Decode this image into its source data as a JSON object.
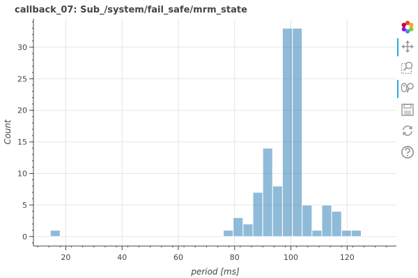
{
  "chart_data": {
    "type": "bar",
    "title": "callback_07: Sub_/system/fail_safe/mrm_state",
    "xlabel": "period [ms]",
    "ylabel": "Count",
    "xlim": [
      8.5,
      137.5
    ],
    "ylim": [
      -1.5,
      34.5
    ],
    "x_ticks": [
      20,
      40,
      60,
      80,
      100,
      120
    ],
    "y_ticks": [
      0,
      5,
      10,
      15,
      20,
      25,
      30
    ],
    "bin_width": 3.5,
    "bins": [
      {
        "left": 14.5,
        "count": 1
      },
      {
        "left": 76,
        "count": 1
      },
      {
        "left": 79.5,
        "count": 3
      },
      {
        "left": 83,
        "count": 2
      },
      {
        "left": 86.5,
        "count": 7
      },
      {
        "left": 90,
        "count": 14
      },
      {
        "left": 93.5,
        "count": 8
      },
      {
        "left": 97,
        "count": 33
      },
      {
        "left": 100.5,
        "count": 33
      },
      {
        "left": 104,
        "count": 5
      },
      {
        "left": 107.5,
        "count": 1
      },
      {
        "left": 111,
        "count": 5
      },
      {
        "left": 114.5,
        "count": 4
      },
      {
        "left": 118,
        "count": 1
      },
      {
        "left": 121.5,
        "count": 1
      }
    ],
    "bar_color": "#1f77b4",
    "bar_opacity": 0.5,
    "grid": true,
    "legend": "none"
  },
  "toolbar": {
    "tools": [
      {
        "name": "bokeh-logo-icon",
        "active": false
      },
      {
        "name": "pan-icon",
        "active": true
      },
      {
        "name": "box-zoom-icon",
        "active": false
      },
      {
        "name": "wheel-zoom-icon",
        "active": true
      },
      {
        "name": "save-icon",
        "active": false
      },
      {
        "name": "reset-icon",
        "active": false
      },
      {
        "name": "help-icon",
        "active": false
      }
    ]
  }
}
